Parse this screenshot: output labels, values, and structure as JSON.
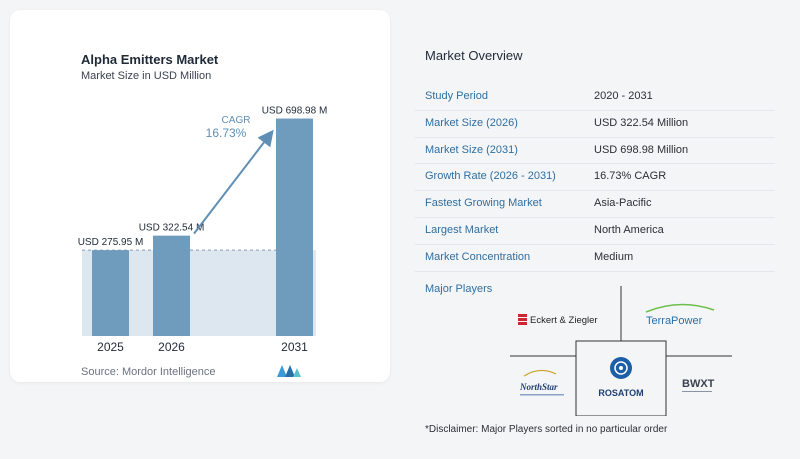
{
  "chart": {
    "title": "Alpha Emitters Market",
    "subtitle": "Market Size in USD Million",
    "source": "Source:  Mordor Intelligence",
    "cagr_label": "CAGR",
    "cagr_value": "16.73%"
  },
  "chart_data": {
    "type": "bar",
    "title": "Alpha Emitters Market",
    "subtitle": "Market Size in USD Million",
    "categories": [
      "2025",
      "2026",
      "2031"
    ],
    "values": [
      275.95,
      322.54,
      698.98
    ],
    "data_labels": [
      "USD 275.95 M",
      "USD 322.54 M",
      "USD 698.98 M"
    ],
    "ylim": [
      0,
      720
    ],
    "grid": false,
    "annotation": "CAGR 16.73%",
    "colors": {
      "bar": "#6f9bbd",
      "band": "#dde7ef",
      "arrow": "#5f8fb4",
      "cagr_text": "#5f8fb4"
    }
  },
  "overview": {
    "title": "Market Overview",
    "rows": [
      {
        "label": "Study Period",
        "value": "2020 - 2031"
      },
      {
        "label": "Market Size (2026)",
        "value": "USD 322.54 Million"
      },
      {
        "label": "Market Size (2031)",
        "value": "USD 698.98 Million"
      },
      {
        "label": "Growth Rate (2026 - 2031)",
        "value": "16.73% CAGR"
      },
      {
        "label": "Fastest Growing Market",
        "value": "Asia-Pacific"
      },
      {
        "label": "Largest Market",
        "value": "North America"
      },
      {
        "label": "Market Concentration",
        "value": "Medium"
      }
    ]
  },
  "players": {
    "title": "Major Players",
    "names": [
      "Eckert & Ziegler",
      "TerraPower",
      "NorthStar",
      "ROSATOM",
      "BWXT"
    ]
  },
  "disclaimer": "*Disclaimer: Major Players sorted in no particular order",
  "accent": "#2f6fa1"
}
